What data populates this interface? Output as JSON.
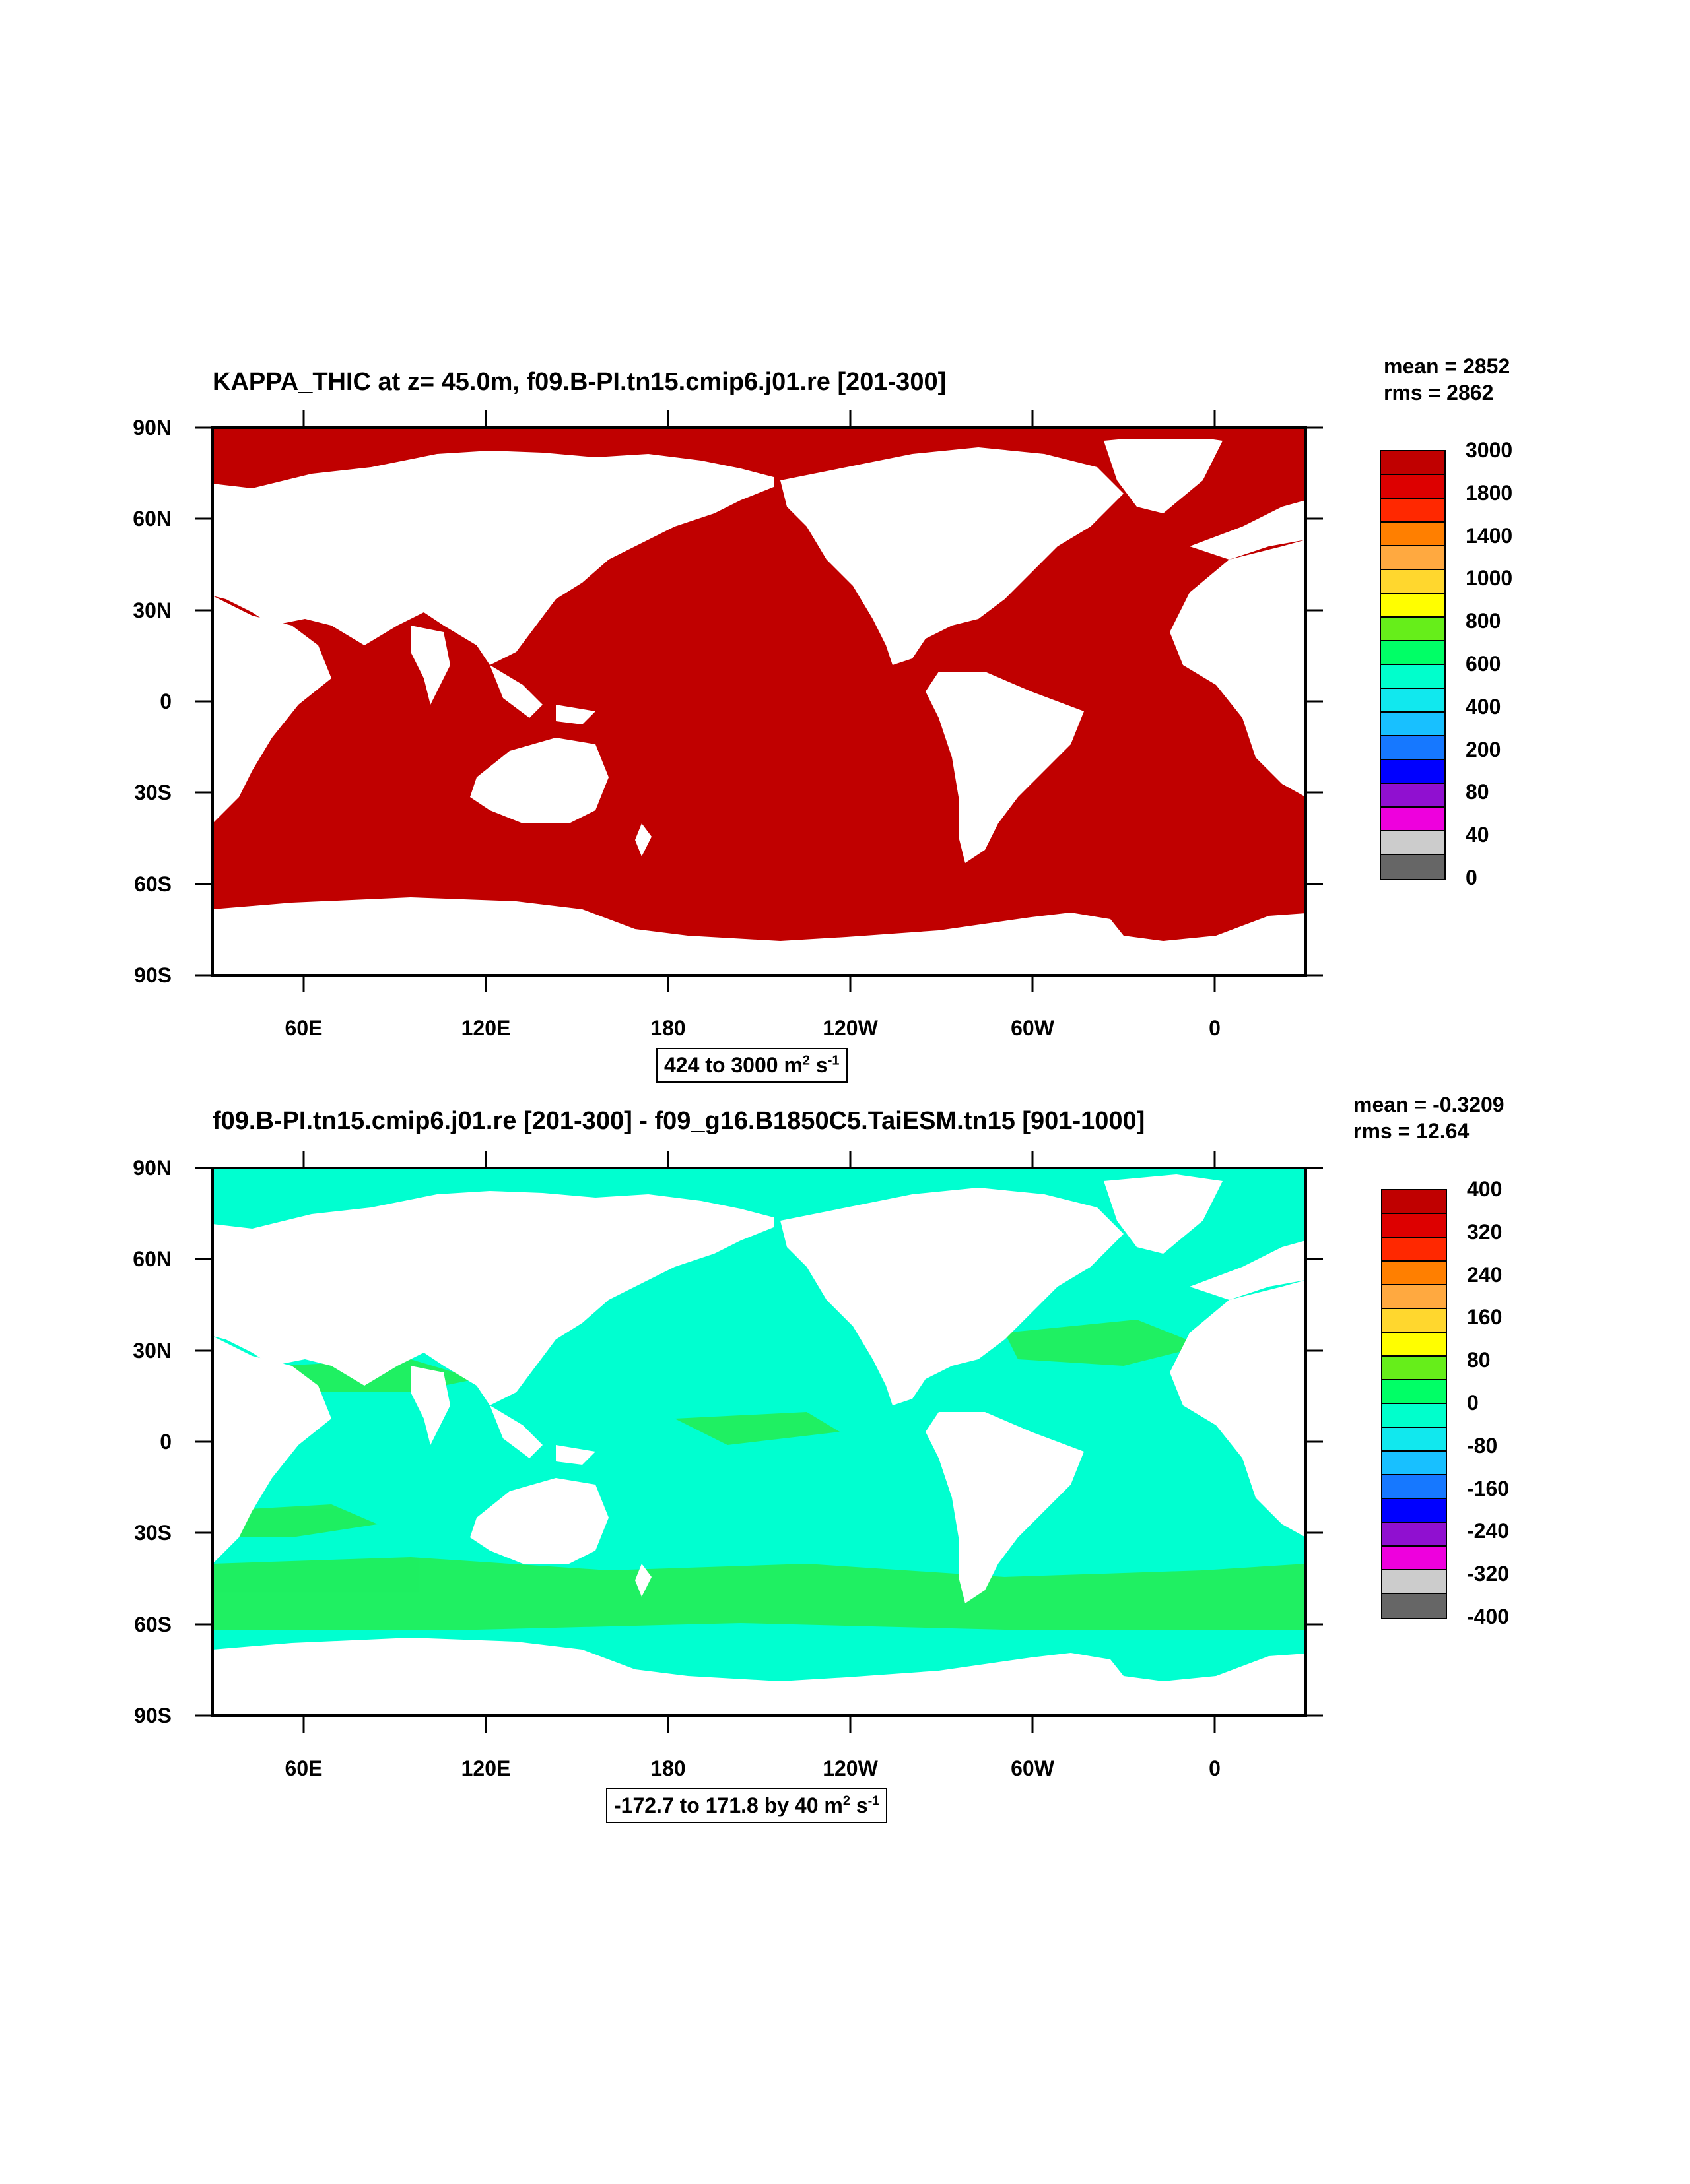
{
  "panels": [
    {
      "title": "KAPPA_THIC at z=  45.0m, f09.B-PI.tn15.cmip6.j01.re [201-300]",
      "mean": "mean = 2852",
      "rms": "rms = 2862",
      "range_text": "424 to 3000 m",
      "range_unit_exp1": "2",
      "range_mid": " s",
      "range_unit_exp2": "-1",
      "ocean_color": "#c00000",
      "colorbar_labels": [
        "3000",
        "1800",
        "1400",
        "1000",
        "800",
        "600",
        "400",
        "200",
        "80",
        "40",
        "0"
      ],
      "colorbar_colors": [
        "#c00000",
        "#dd0000",
        "#ff2800",
        "#ff7f00",
        "#ffa940",
        "#ffd72e",
        "#fffe00",
        "#66ee1a",
        "#00ff66",
        "#00ffcc",
        "#11e8ee",
        "#18c0ff",
        "#1678ff",
        "#0000ff",
        "#9010d0",
        "#ee00dd",
        "#cccccc",
        "#666666"
      ]
    },
    {
      "title": "f09.B-PI.tn15.cmip6.j01.re [201-300] - f09_g16.B1850C5.TaiESM.tn15 [901-1000]",
      "mean": "mean = -0.3209",
      "rms": "rms = 12.64",
      "range_text": "-172.7 to 171.8 by 40 m",
      "range_unit_exp1": "2",
      "range_mid": " s",
      "range_unit_exp2": "-1",
      "ocean_color": "#00ffd0",
      "band_color": "#22ee55",
      "colorbar_labels": [
        "400",
        "320",
        "240",
        "160",
        "80",
        "0",
        "-80",
        "-160",
        "-240",
        "-320",
        "-400"
      ],
      "colorbar_colors": [
        "#c00000",
        "#dd0000",
        "#ff2800",
        "#ff7f00",
        "#ffa940",
        "#ffd72e",
        "#fffe00",
        "#66ee1a",
        "#00ff66",
        "#00ffcc",
        "#11e8ee",
        "#18c0ff",
        "#1678ff",
        "#0000ff",
        "#9010d0",
        "#ee00dd",
        "#cccccc",
        "#666666"
      ]
    }
  ],
  "lat_labels": [
    "90N",
    "60N",
    "30N",
    "0",
    "30S",
    "60S",
    "90S"
  ],
  "lon_labels": [
    "60E",
    "120E",
    "180",
    "120W",
    "60W",
    "0"
  ]
}
